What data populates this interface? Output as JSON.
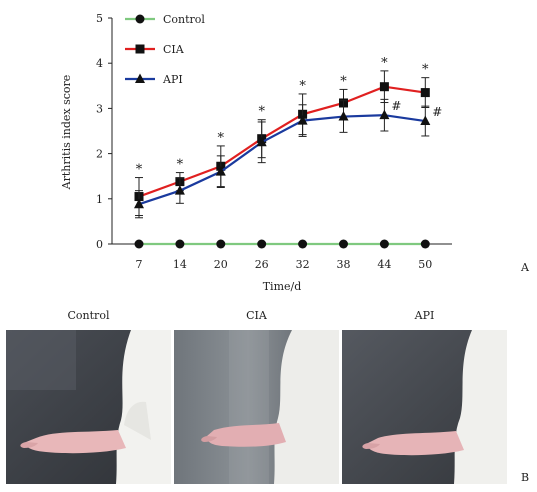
{
  "figure": {
    "panel_a_label": "A",
    "panel_b_label": "B",
    "photo_titles": [
      "Control",
      "CIA",
      "API"
    ]
  },
  "chart_data": {
    "type": "line",
    "xlabel": "Time/d",
    "ylabel": "Arthritis index score",
    "ylim": [
      0,
      5
    ],
    "yticks": [
      0,
      1,
      2,
      3,
      4,
      5
    ],
    "x": [
      7,
      14,
      20,
      26,
      32,
      38,
      44,
      50
    ],
    "grid": false,
    "legend": "top-left",
    "series": [
      {
        "name": "Control",
        "marker": "circle",
        "color": "#7fc97f",
        "values": [
          0,
          0,
          0,
          0,
          0,
          0,
          0,
          0
        ],
        "errors": [
          0,
          0,
          0,
          0,
          0,
          0,
          0,
          0
        ]
      },
      {
        "name": "CIA",
        "marker": "square",
        "color": "#e02020",
        "values": [
          1.05,
          1.38,
          1.72,
          2.33,
          2.87,
          3.12,
          3.48,
          3.35
        ],
        "errors": [
          0.42,
          0.2,
          0.45,
          0.42,
          0.45,
          0.3,
          0.35,
          0.33
        ]
      },
      {
        "name": "API",
        "marker": "triangle",
        "color": "#1a3a9e",
        "values": [
          0.88,
          1.18,
          1.6,
          2.25,
          2.73,
          2.82,
          2.85,
          2.72
        ],
        "errors": [
          0.3,
          0.28,
          0.35,
          0.45,
          0.35,
          0.35,
          0.35,
          0.33
        ]
      }
    ],
    "annotations": {
      "star": {
        "symbol": "*",
        "x": [
          7,
          14,
          20,
          26,
          32,
          38,
          44,
          50
        ]
      },
      "hash": {
        "symbol": "#",
        "x": [
          44,
          50
        ]
      }
    }
  }
}
